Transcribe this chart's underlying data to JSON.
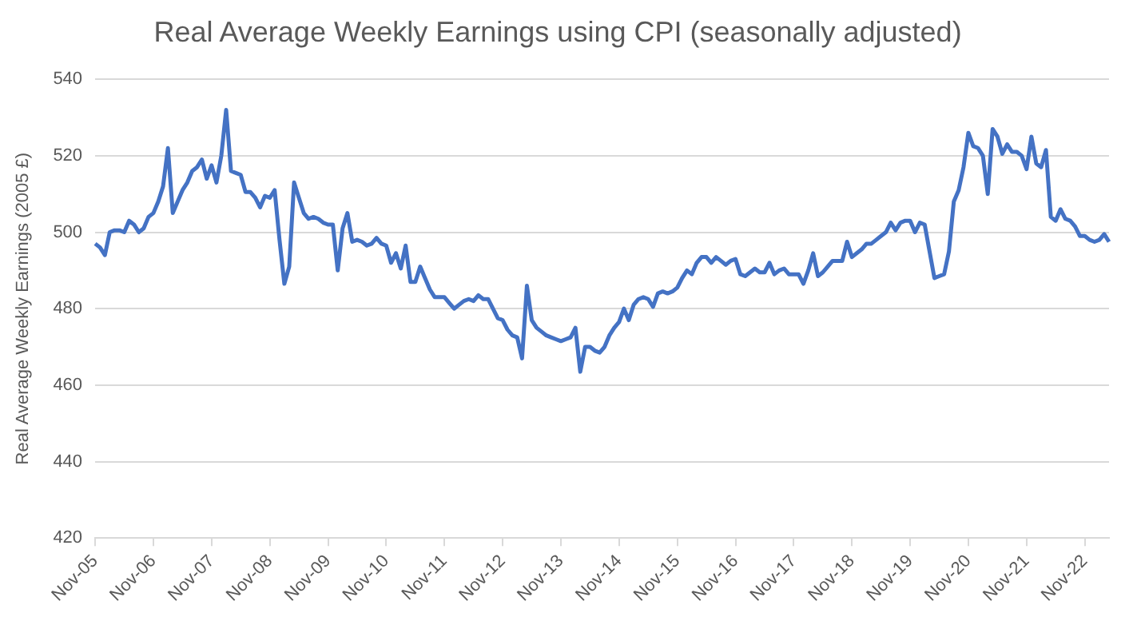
{
  "chart_data": {
    "type": "line",
    "title": "Real Average Weekly Earnings using CPI (seasonally adjusted)",
    "ylabel": "Real Average Weekly Earnings (2005 £)",
    "categories": [
      "Nov-05",
      null,
      null,
      null,
      null,
      null,
      null,
      null,
      null,
      null,
      null,
      null,
      "Nov-06",
      null,
      null,
      null,
      null,
      null,
      null,
      null,
      null,
      null,
      null,
      null,
      "Nov-07",
      null,
      null,
      null,
      null,
      null,
      null,
      null,
      null,
      null,
      null,
      null,
      "Nov-08",
      null,
      null,
      null,
      null,
      null,
      null,
      null,
      null,
      null,
      null,
      null,
      "Nov-09",
      null,
      null,
      null,
      null,
      null,
      null,
      null,
      null,
      null,
      null,
      null,
      "Nov-10",
      null,
      null,
      null,
      null,
      null,
      null,
      null,
      null,
      null,
      null,
      null,
      "Nov-11",
      null,
      null,
      null,
      null,
      null,
      null,
      null,
      null,
      null,
      null,
      null,
      "Nov-12",
      null,
      null,
      null,
      null,
      null,
      null,
      null,
      null,
      null,
      null,
      null,
      "Nov-13",
      null,
      null,
      null,
      null,
      null,
      null,
      null,
      null,
      null,
      null,
      null,
      "Nov-14",
      null,
      null,
      null,
      null,
      null,
      null,
      null,
      null,
      null,
      null,
      null,
      "Nov-15",
      null,
      null,
      null,
      null,
      null,
      null,
      null,
      null,
      null,
      null,
      null,
      "Nov-16",
      null,
      null,
      null,
      null,
      null,
      null,
      null,
      null,
      null,
      null,
      null,
      "Nov-17",
      null,
      null,
      null,
      null,
      null,
      null,
      null,
      null,
      null,
      null,
      null,
      "Nov-18",
      null,
      null,
      null,
      null,
      null,
      null,
      null,
      null,
      null,
      null,
      null,
      "Nov-19",
      null,
      null,
      null,
      null,
      null,
      null,
      null,
      null,
      null,
      null,
      null,
      "Nov-20",
      null,
      null,
      null,
      null,
      null,
      null,
      null,
      null,
      null,
      null,
      null,
      "Nov-21",
      null,
      null,
      null,
      null,
      null,
      null,
      null,
      null,
      null,
      null,
      null,
      "Nov-22",
      null,
      null,
      null,
      null,
      null
    ],
    "series": [
      {
        "color": "#4472c4",
        "values": [
          497,
          496,
          494,
          500,
          500.5,
          500.5,
          500,
          503,
          502,
          500,
          501,
          504,
          505,
          508,
          512,
          522,
          505,
          508,
          511,
          513,
          516,
          517,
          519,
          514,
          517.5,
          513,
          520,
          532,
          516,
          515.5,
          515,
          510.5,
          510.5,
          509,
          506.5,
          509.5,
          509,
          511,
          498,
          486.5,
          491,
          513,
          509,
          505,
          503.5,
          504,
          503.5,
          502.5,
          502,
          502,
          490,
          501,
          505,
          497.5,
          498,
          497.5,
          496.5,
          497,
          498.5,
          497,
          496.5,
          492,
          494.5,
          490.5,
          496.5,
          487,
          487,
          491,
          488,
          485,
          483,
          483,
          483,
          481.5,
          480,
          481,
          482,
          482.5,
          482,
          483.5,
          482.5,
          482.5,
          480,
          477.5,
          477,
          474.5,
          473,
          472.5,
          467,
          486,
          477,
          475,
          474,
          473,
          472.5,
          472,
          471.5,
          472,
          472.5,
          475,
          463.5,
          470,
          470,
          469,
          468.5,
          470,
          473,
          475,
          476.5,
          480,
          477,
          481,
          482.5,
          483,
          482.5,
          480.5,
          484,
          484.5,
          484,
          484.5,
          485.5,
          488,
          490,
          489,
          492,
          493.5,
          493.5,
          492,
          493.5,
          492.5,
          491.5,
          492.5,
          493,
          489,
          488.5,
          489.5,
          490.5,
          489.5,
          489.5,
          492,
          489,
          490,
          490.5,
          489,
          489,
          489,
          486.5,
          490,
          494.5,
          488.5,
          489.5,
          491,
          492.5,
          492.5,
          492.5,
          497.5,
          493.5,
          494.5,
          495.5,
          497,
          497,
          498,
          499,
          500,
          502.5,
          500.5,
          502.5,
          503,
          503,
          500,
          502.5,
          502,
          495,
          488,
          488.5,
          489,
          495,
          508,
          511,
          517,
          526,
          522.5,
          522,
          520,
          510,
          527,
          525,
          520.5,
          523,
          521,
          521,
          520,
          516.5,
          525,
          518,
          517,
          521.5,
          504,
          503,
          506,
          503.5,
          503,
          501.5,
          499,
          499,
          498,
          497.5,
          498,
          499.5,
          497.5
        ]
      }
    ],
    "ylim": [
      420,
      540
    ],
    "yticks": [
      420,
      440,
      460,
      480,
      500,
      520,
      540
    ],
    "grid": "y",
    "legend": false,
    "marker": "none",
    "line_style": "solid"
  }
}
